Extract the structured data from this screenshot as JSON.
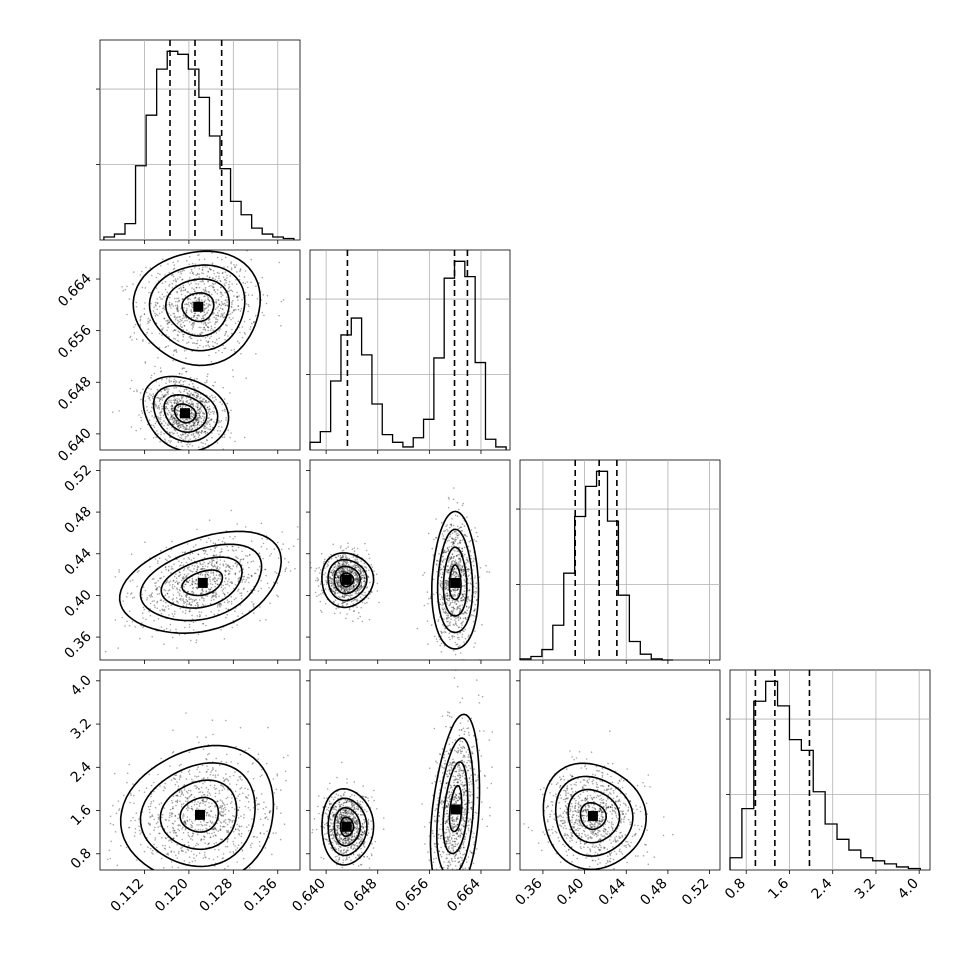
{
  "chart_data": {
    "type": "corner",
    "parameters": [
      {
        "range": [
          0.104,
          0.14
        ],
        "ticks": [
          0.112,
          0.12,
          0.128,
          0.136
        ],
        "tick_labels": [
          "0.112",
          "0.120",
          "0.128",
          "0.136"
        ],
        "quantiles": [
          0.1166,
          0.1211,
          0.1259
        ]
      },
      {
        "range": [
          0.6375,
          0.6685
        ],
        "ticks": [
          0.64,
          0.648,
          0.656,
          0.664
        ],
        "tick_labels": [
          "0.640",
          "0.648",
          "0.656",
          "0.664"
        ],
        "quantiles": [
          0.6433,
          0.6599,
          0.6619
        ]
      },
      {
        "range": [
          0.338,
          0.53
        ],
        "ticks": [
          0.36,
          0.4,
          0.44,
          0.48,
          0.52
        ],
        "tick_labels": [
          "0.36",
          "0.40",
          "0.44",
          "0.48",
          "0.52"
        ],
        "quantiles": [
          0.391,
          0.414,
          0.431
        ]
      },
      {
        "range": [
          0.5,
          4.2
        ],
        "ticks": [
          0.8,
          1.6,
          2.4,
          3.2,
          4.0
        ],
        "tick_labels": [
          "0.8",
          "1.6",
          "2.4",
          "3.2",
          "4.0"
        ],
        "quantiles": [
          0.97,
          1.33,
          1.97
        ]
      }
    ],
    "histograms": [
      {
        "bins": [
          0.1047,
          0.1066,
          0.1085,
          0.1104,
          0.1123,
          0.1142,
          0.1161,
          0.118,
          0.1199,
          0.1218,
          0.1237,
          0.1256,
          0.1275,
          0.1294,
          0.1313,
          0.1332,
          0.1351,
          0.137,
          0.1389
        ],
        "counts": [
          2,
          4,
          11,
          50,
          84,
          115,
          127,
          125,
          115,
          96,
          70,
          48,
          26,
          17,
          8,
          4,
          2,
          1
        ]
      },
      {
        "bins": [
          0.6375,
          0.6391,
          0.6407,
          0.6423,
          0.6439,
          0.6455,
          0.6471,
          0.6487,
          0.6503,
          0.6519,
          0.6535,
          0.6551,
          0.6567,
          0.6583,
          0.6599,
          0.6615,
          0.6631,
          0.6647,
          0.6663,
          0.6679
        ],
        "counts": [
          5,
          12,
          45,
          75,
          86,
          62,
          30,
          10,
          5,
          2,
          8,
          20,
          60,
          112,
          123,
          113,
          57,
          7,
          2
        ]
      },
      {
        "bins": [
          0.338,
          0.3485,
          0.359,
          0.3695,
          0.38,
          0.3905,
          0.401,
          0.4115,
          0.422,
          0.4325,
          0.443,
          0.4535,
          0.464,
          0.4745,
          0.485
        ],
        "counts": [
          1,
          3,
          9,
          30,
          75,
          124,
          150,
          163,
          120,
          56,
          16,
          5,
          1,
          0
        ]
      },
      {
        "bins": [
          0.5,
          0.72,
          0.94,
          1.16,
          1.38,
          1.6,
          1.82,
          2.04,
          2.26,
          2.48,
          2.7,
          2.92,
          3.14,
          3.36,
          3.58,
          3.8,
          4.02
        ],
        "counts": [
          8,
          40,
          110,
          123,
          107,
          85,
          78,
          51,
          30,
          20,
          13,
          8,
          6,
          4,
          2,
          1
        ]
      }
    ],
    "panels_2d": [
      {
        "x": 0,
        "y": 1,
        "modes": [
          {
            "cx": 0.1217,
            "cy": 0.6597,
            "rx": 0.0057,
            "ry": 0.0044,
            "rot": -7
          },
          {
            "cx": 0.1193,
            "cy": 0.6432,
            "rx": 0.004,
            "ry": 0.0027,
            "rot": 28
          }
        ]
      },
      {
        "x": 0,
        "y": 2,
        "modes": [
          {
            "cx": 0.1225,
            "cy": 0.412,
            "rx": 0.0075,
            "ry": 0.022,
            "rot": -18
          }
        ]
      },
      {
        "x": 1,
        "y": 2,
        "modes": [
          {
            "cx": 0.6432,
            "cy": 0.415,
            "rx": 0.002,
            "ry": 0.013,
            "rot": -5
          },
          {
            "cx": 0.66,
            "cy": 0.412,
            "rx": 0.0018,
            "ry": 0.033,
            "rot": 0
          }
        ]
      },
      {
        "x": 0,
        "y": 3,
        "modes": [
          {
            "cx": 0.122,
            "cy": 1.52,
            "rx": 0.007,
            "ry": 0.62,
            "rot": -22
          }
        ]
      },
      {
        "x": 1,
        "y": 3,
        "modes": [
          {
            "cx": 0.6432,
            "cy": 1.3,
            "rx": 0.002,
            "ry": 0.35,
            "rot": 0
          },
          {
            "cx": 0.6601,
            "cy": 1.62,
            "rx": 0.0018,
            "ry": 0.85,
            "rot": 5
          }
        ]
      },
      {
        "x": 2,
        "y": 3,
        "modes": [
          {
            "cx": 0.408,
            "cy": 1.5,
            "rx": 0.024,
            "ry": 0.5,
            "rot": -35
          }
        ]
      }
    ],
    "contour_levels": [
      0.5,
      1.0,
      1.5,
      2.0
    ],
    "title": "",
    "grid": true
  }
}
